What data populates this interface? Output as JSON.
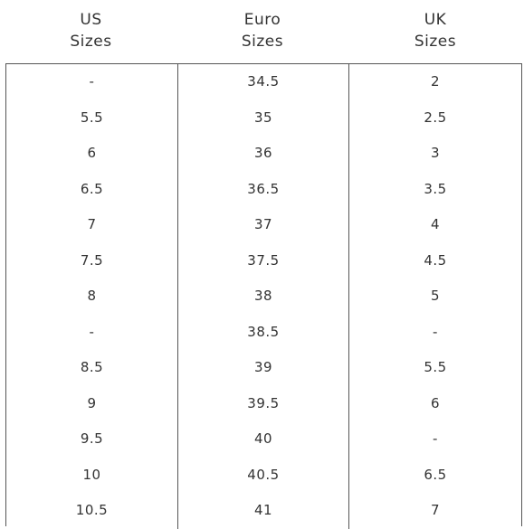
{
  "headers": [
    {
      "line1": "US",
      "line2": "Sizes"
    },
    {
      "line1": "Euro",
      "line2": "Sizes"
    },
    {
      "line1": "UK",
      "line2": "Sizes"
    }
  ],
  "us": [
    "-",
    "5.5",
    "6",
    "6.5",
    "7",
    "7.5",
    "8",
    "-",
    "8.5",
    "9",
    "9.5",
    "10",
    "10.5"
  ],
  "euro": [
    "34.5",
    "35",
    "36",
    "36.5",
    "37",
    "37.5",
    "38",
    "38.5",
    "39",
    "39.5",
    "40",
    "40.5",
    "41"
  ],
  "uk": [
    "2",
    "2.5",
    "3",
    "3.5",
    "4",
    "4.5",
    "5",
    "-",
    "5.5",
    "6",
    "-",
    "6.5",
    "7"
  ]
}
